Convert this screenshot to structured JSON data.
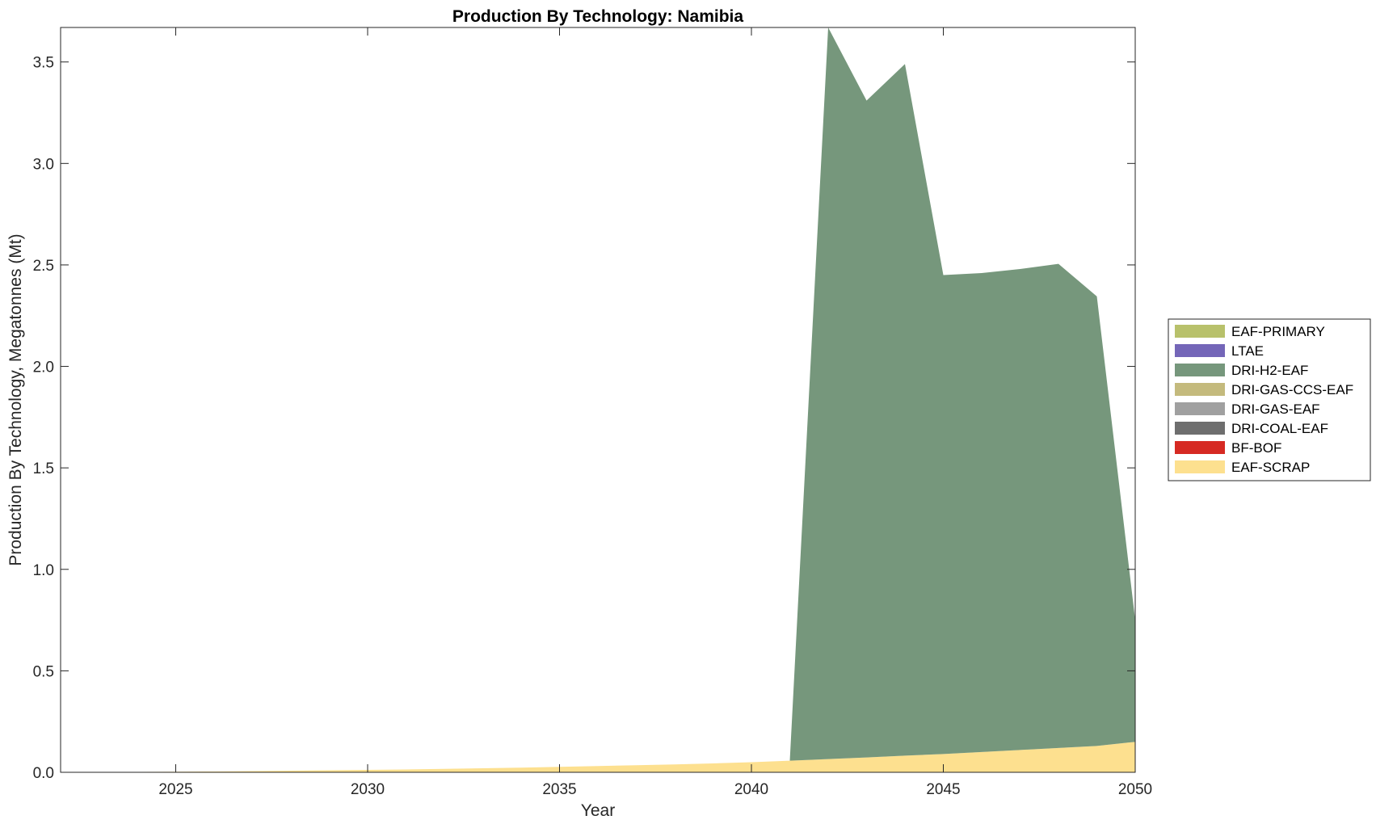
{
  "chart_data": {
    "type": "area",
    "stacked": true,
    "title": "Production By Technology: Namibia",
    "xlabel": "Year",
    "ylabel": "Production By Technology, Megatonnes (Mt)",
    "xlim": [
      2022,
      2050
    ],
    "ylim": [
      0,
      3.67
    ],
    "xticks": [
      2025,
      2030,
      2035,
      2040,
      2045,
      2050
    ],
    "yticks": [
      0,
      0.5,
      1,
      1.5,
      2,
      2.5,
      3,
      3.5
    ],
    "xtick_labels": [
      "2025",
      "2030",
      "2035",
      "2040",
      "2045",
      "2050"
    ],
    "ytick_labels": [
      "0.0",
      "0.5",
      "1.0",
      "1.5",
      "2.0",
      "2.5",
      "3.0",
      "3.5"
    ],
    "grid": false,
    "legend_position": "right",
    "x": [
      2022,
      2023,
      2024,
      2025,
      2026,
      2027,
      2028,
      2029,
      2030,
      2031,
      2032,
      2033,
      2034,
      2035,
      2036,
      2037,
      2038,
      2039,
      2040,
      2041,
      2042,
      2043,
      2044,
      2045,
      2046,
      2047,
      2048,
      2049,
      2050
    ],
    "series": [
      {
        "name": "EAF-SCRAP",
        "color": "#FDE08F",
        "values": [
          0,
          0.001,
          0.002,
          0.003,
          0.004,
          0.006,
          0.008,
          0.01,
          0.012,
          0.014,
          0.017,
          0.02,
          0.023,
          0.027,
          0.031,
          0.035,
          0.039,
          0.044,
          0.05,
          0.057,
          0.065,
          0.073,
          0.082,
          0.09,
          0.1,
          0.11,
          0.12,
          0.13,
          0.15
        ]
      },
      {
        "name": "BF-BOF",
        "color": "#D62A23",
        "values": [
          0,
          0,
          0,
          0,
          0,
          0,
          0,
          0,
          0,
          0,
          0,
          0,
          0,
          0,
          0,
          0,
          0,
          0,
          0,
          0,
          0,
          0,
          0,
          0,
          0,
          0,
          0,
          0,
          0
        ]
      },
      {
        "name": "DRI-COAL-EAF",
        "color": "#6E6E6E",
        "values": [
          0,
          0,
          0,
          0,
          0,
          0,
          0,
          0,
          0,
          0,
          0,
          0,
          0,
          0,
          0,
          0,
          0,
          0,
          0,
          0,
          0,
          0,
          0,
          0,
          0,
          0,
          0,
          0,
          0
        ]
      },
      {
        "name": "DRI-GAS-EAF",
        "color": "#A0A0A0",
        "values": [
          0,
          0,
          0,
          0,
          0,
          0,
          0,
          0,
          0,
          0,
          0,
          0,
          0,
          0,
          0,
          0,
          0,
          0,
          0,
          0,
          0,
          0,
          0,
          0,
          0,
          0,
          0,
          0,
          0
        ]
      },
      {
        "name": "DRI-GAS-CCS-EAF",
        "color": "#C4BA7D",
        "values": [
          0,
          0,
          0,
          0,
          0,
          0,
          0,
          0,
          0,
          0,
          0,
          0,
          0,
          0,
          0,
          0,
          0,
          0,
          0,
          0,
          0,
          0,
          0,
          0,
          0,
          0,
          0,
          0,
          0
        ]
      },
      {
        "name": "DRI-H2-EAF",
        "color": "#76977C",
        "values": [
          0,
          0,
          0,
          0,
          0,
          0,
          0,
          0,
          0,
          0,
          0,
          0,
          0,
          0,
          0,
          0,
          0,
          0,
          0,
          0,
          3.605,
          3.237,
          3.408,
          2.36,
          2.36,
          2.37,
          2.385,
          2.215,
          0.6
        ]
      },
      {
        "name": "LTAE",
        "color": "#7466B8",
        "values": [
          0,
          0,
          0,
          0,
          0,
          0,
          0,
          0,
          0,
          0,
          0,
          0,
          0,
          0,
          0,
          0,
          0,
          0,
          0,
          0,
          0,
          0,
          0,
          0,
          0,
          0,
          0,
          0,
          0
        ]
      },
      {
        "name": "EAF-PRIMARY",
        "color": "#B8C16B",
        "values": [
          0,
          0,
          0,
          0,
          0,
          0,
          0,
          0,
          0,
          0,
          0,
          0,
          0,
          0,
          0,
          0,
          0,
          0,
          0,
          0,
          0,
          0,
          0,
          0,
          0,
          0,
          0,
          0,
          0
        ]
      }
    ],
    "legend_order": [
      "EAF-PRIMARY",
      "LTAE",
      "DRI-H2-EAF",
      "DRI-GAS-CCS-EAF",
      "DRI-GAS-EAF",
      "DRI-COAL-EAF",
      "BF-BOF",
      "EAF-SCRAP"
    ]
  }
}
